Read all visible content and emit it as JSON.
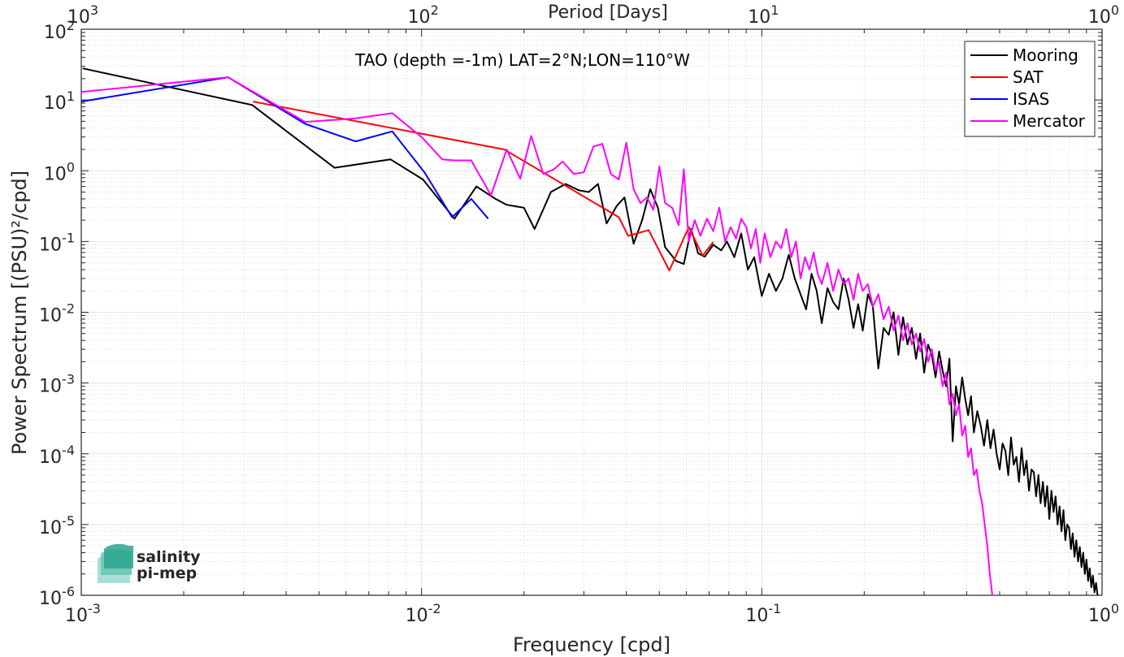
{
  "chart_data": {
    "type": "line",
    "title": "TAO (depth =-1m) LAT=2°N;LON=110°W",
    "xlabel": "Frequency [cpd]",
    "ylabel": "Power Spectrum [(PSU)²/cpd]",
    "x2label": "Period [Days]",
    "xscale": "log",
    "yscale": "log",
    "xlim": [
      0.001,
      1
    ],
    "ylim": [
      1e-06,
      100
    ],
    "x_ticks": [
      {
        "value": 0.001,
        "base": "10",
        "exp": "-3"
      },
      {
        "value": 0.01,
        "base": "10",
        "exp": "-2"
      },
      {
        "value": 0.1,
        "base": "10",
        "exp": "-1"
      },
      {
        "value": 1,
        "base": "10",
        "exp": "0"
      }
    ],
    "x2_ticks": [
      {
        "value": 0.001,
        "base": "10",
        "exp": "3"
      },
      {
        "value": 0.01,
        "base": "10",
        "exp": "2"
      },
      {
        "value": 0.1,
        "base": "10",
        "exp": "1"
      },
      {
        "value": 1,
        "base": "10",
        "exp": "0"
      }
    ],
    "y_ticks": [
      {
        "value": 1e-06,
        "base": "10",
        "exp": "-6"
      },
      {
        "value": 1e-05,
        "base": "10",
        "exp": "-5"
      },
      {
        "value": 0.0001,
        "base": "10",
        "exp": "-4"
      },
      {
        "value": 0.001,
        "base": "10",
        "exp": "-3"
      },
      {
        "value": 0.01,
        "base": "10",
        "exp": "-2"
      },
      {
        "value": 0.1,
        "base": "10",
        "exp": "-1"
      },
      {
        "value": 1,
        "base": "10",
        "exp": "0"
      },
      {
        "value": 10,
        "base": "10",
        "exp": "1"
      },
      {
        "value": 100,
        "base": "10",
        "exp": "2"
      }
    ],
    "grid": true,
    "legend_position": "top-right",
    "series": [
      {
        "name": "Mooring",
        "color": "#000000",
        "points": [
          [
            0.00101,
            28
          ],
          [
            0.00318,
            8.5
          ],
          [
            0.00555,
            1.1
          ],
          [
            0.0081,
            1.45
          ],
          [
            0.0101,
            0.75
          ],
          [
            0.0125,
            0.21
          ],
          [
            0.0145,
            0.6
          ],
          [
            0.0165,
            0.4
          ],
          [
            0.0178,
            0.33
          ],
          [
            0.02,
            0.3
          ],
          [
            0.0215,
            0.15
          ],
          [
            0.024,
            0.5
          ],
          [
            0.0265,
            0.65
          ],
          [
            0.029,
            0.53
          ],
          [
            0.031,
            0.5
          ],
          [
            0.033,
            0.65
          ],
          [
            0.035,
            0.18
          ],
          [
            0.0375,
            0.32
          ],
          [
            0.0395,
            0.42
          ],
          [
            0.042,
            0.093
          ],
          [
            0.0445,
            0.2
          ],
          [
            0.047,
            0.55
          ],
          [
            0.0495,
            0.3
          ],
          [
            0.052,
            0.083
          ],
          [
            0.056,
            0.053
          ],
          [
            0.059,
            0.048
          ],
          [
            0.062,
            0.15
          ],
          [
            0.065,
            0.068
          ],
          [
            0.068,
            0.061
          ],
          [
            0.072,
            0.09
          ],
          [
            0.076,
            0.075
          ],
          [
            0.079,
            0.1
          ],
          [
            0.083,
            0.06
          ],
          [
            0.087,
            0.13
          ],
          [
            0.091,
            0.04
          ],
          [
            0.095,
            0.06
          ],
          [
            0.1,
            0.017
          ],
          [
            0.105,
            0.035
          ],
          [
            0.11,
            0.02
          ],
          [
            0.115,
            0.03
          ],
          [
            0.12,
            0.065
          ],
          [
            0.125,
            0.03
          ],
          [
            0.13,
            0.018
          ],
          [
            0.135,
            0.011
          ],
          [
            0.14,
            0.035
          ],
          [
            0.145,
            0.02
          ],
          [
            0.15,
            0.007
          ],
          [
            0.156,
            0.022
          ],
          [
            0.162,
            0.014
          ],
          [
            0.168,
            0.011
          ],
          [
            0.174,
            0.03
          ],
          [
            0.18,
            0.015
          ],
          [
            0.186,
            0.006
          ],
          [
            0.192,
            0.013
          ],
          [
            0.198,
            0.0055
          ],
          [
            0.205,
            0.018
          ],
          [
            0.212,
            0.012
          ],
          [
            0.22,
            0.0016
          ],
          [
            0.228,
            0.006
          ],
          [
            0.236,
            0.0048
          ],
          [
            0.244,
            0.01
          ],
          [
            0.252,
            0.0025
          ],
          [
            0.26,
            0.0085
          ],
          [
            0.268,
            0.0035
          ],
          [
            0.276,
            0.006
          ],
          [
            0.284,
            0.0022
          ],
          [
            0.292,
            0.005
          ],
          [
            0.3,
            0.0014
          ],
          [
            0.308,
            0.0035
          ],
          [
            0.316,
            0.0025
          ],
          [
            0.324,
            0.0012
          ],
          [
            0.332,
            0.0028
          ],
          [
            0.34,
            0.0015
          ],
          [
            0.348,
            0.0009
          ],
          [
            0.356,
            0.0022
          ],
          [
            0.364,
            0.00015
          ],
          [
            0.372,
            0.0009
          ],
          [
            0.38,
            0.0005
          ],
          [
            0.388,
            0.0012
          ],
          [
            0.396,
            0.0006
          ],
          [
            0.404,
            0.00035
          ],
          [
            0.412,
            0.00065
          ],
          [
            0.42,
            0.0002
          ],
          [
            0.43,
            0.0004
          ],
          [
            0.44,
            0.00025
          ],
          [
            0.45,
            0.00013
          ],
          [
            0.46,
            0.0003
          ],
          [
            0.47,
            0.00012
          ],
          [
            0.48,
            0.00022
          ],
          [
            0.49,
            0.0001
          ],
          [
            0.5,
            6e-05
          ],
          [
            0.51,
            0.00014
          ],
          [
            0.52,
            0.00011
          ],
          [
            0.53,
            5e-05
          ],
          [
            0.54,
            0.00017
          ],
          [
            0.55,
            7e-05
          ],
          [
            0.56,
            9e-05
          ],
          [
            0.57,
            4e-05
          ],
          [
            0.58,
            0.00012
          ],
          [
            0.59,
            5e-05
          ],
          [
            0.6,
            8e-05
          ],
          [
            0.61,
            3e-05
          ],
          [
            0.62,
            6e-05
          ],
          [
            0.63,
            5.5e-05
          ],
          [
            0.64,
            2.5e-05
          ],
          [
            0.65,
            5e-05
          ],
          [
            0.66,
            2e-05
          ],
          [
            0.67,
            4e-05
          ],
          [
            0.68,
            1.8e-05
          ],
          [
            0.69,
            3.5e-05
          ],
          [
            0.7,
            1.2e-05
          ],
          [
            0.71,
            3e-05
          ],
          [
            0.72,
            1.5e-05
          ],
          [
            0.73,
            2.5e-05
          ],
          [
            0.74,
            1e-05
          ],
          [
            0.75,
            1.8e-05
          ],
          [
            0.76,
            8e-06
          ],
          [
            0.77,
            1.6e-05
          ],
          [
            0.78,
            6e-06
          ],
          [
            0.79,
            1e-05
          ],
          [
            0.8,
            9e-06
          ],
          [
            0.81,
            4.5e-06
          ],
          [
            0.82,
            7.5e-06
          ],
          [
            0.83,
            3.5e-06
          ],
          [
            0.84,
            6e-06
          ],
          [
            0.85,
            3e-06
          ],
          [
            0.86,
            4.8e-06
          ],
          [
            0.87,
            2.5e-06
          ],
          [
            0.88,
            4e-06
          ],
          [
            0.89,
            2e-06
          ],
          [
            0.9,
            3.2e-06
          ],
          [
            0.91,
            1.6e-06
          ],
          [
            0.92,
            2.4e-06
          ],
          [
            0.93,
            1.3e-06
          ],
          [
            0.94,
            1.9e-06
          ],
          [
            0.95,
            1.1e-06
          ],
          [
            0.96,
            1.5e-06
          ],
          [
            0.97,
            1e-06
          ]
        ]
      },
      {
        "name": "SAT",
        "color": "#ff0000",
        "points": [
          [
            0.0032,
            9.5
          ],
          [
            0.0175,
            2.0
          ],
          [
            0.038,
            0.22
          ],
          [
            0.0405,
            0.12
          ],
          [
            0.0465,
            0.145
          ],
          [
            0.0535,
            0.039
          ],
          [
            0.061,
            0.16
          ],
          [
            0.067,
            0.063
          ],
          [
            0.072,
            0.098
          ]
        ]
      },
      {
        "name": "ISAS",
        "color": "#0000ff",
        "points": [
          [
            0.001,
            9.5
          ],
          [
            0.0027,
            21
          ],
          [
            0.00455,
            4.6
          ],
          [
            0.0064,
            2.6
          ],
          [
            0.0082,
            3.6
          ],
          [
            0.0102,
            0.95
          ],
          [
            0.0123,
            0.22
          ],
          [
            0.014,
            0.4
          ],
          [
            0.0157,
            0.21
          ]
        ]
      },
      {
        "name": "Mercator",
        "color": "#ff00ff",
        "points": [
          [
            0.001,
            13
          ],
          [
            0.0027,
            21
          ],
          [
            0.00455,
            4.9
          ],
          [
            0.0064,
            5.5
          ],
          [
            0.0082,
            6.5
          ],
          [
            0.01,
            3
          ],
          [
            0.0115,
            1.45
          ],
          [
            0.0125,
            1.4
          ],
          [
            0.014,
            1.4
          ],
          [
            0.016,
            0.45
          ],
          [
            0.0178,
            2.0
          ],
          [
            0.0195,
            0.77
          ],
          [
            0.021,
            3.1
          ],
          [
            0.0228,
            0.9
          ],
          [
            0.0245,
            1.05
          ],
          [
            0.026,
            1.35
          ],
          [
            0.028,
            0.9
          ],
          [
            0.03,
            0.95
          ],
          [
            0.032,
            2.2
          ],
          [
            0.034,
            2.4
          ],
          [
            0.036,
            0.9
          ],
          [
            0.038,
            0.75
          ],
          [
            0.04,
            2.5
          ],
          [
            0.042,
            0.55
          ],
          [
            0.044,
            0.35
          ],
          [
            0.046,
            0.42
          ],
          [
            0.048,
            0.28
          ],
          [
            0.05,
            1.15
          ],
          [
            0.052,
            0.35
          ],
          [
            0.0545,
            0.3
          ],
          [
            0.057,
            0.17
          ],
          [
            0.059,
            1.05
          ],
          [
            0.061,
            0.1
          ],
          [
            0.0635,
            0.2
          ],
          [
            0.066,
            0.12
          ],
          [
            0.069,
            0.21
          ],
          [
            0.072,
            0.14
          ],
          [
            0.075,
            0.3
          ],
          [
            0.078,
            0.1
          ],
          [
            0.081,
            0.16
          ],
          [
            0.084,
            0.11
          ],
          [
            0.087,
            0.21
          ],
          [
            0.09,
            0.16
          ],
          [
            0.093,
            0.08
          ],
          [
            0.096,
            0.15
          ],
          [
            0.099,
            0.05
          ],
          [
            0.102,
            0.13
          ],
          [
            0.106,
            0.06
          ],
          [
            0.11,
            0.1
          ],
          [
            0.114,
            0.08
          ],
          [
            0.118,
            0.15
          ],
          [
            0.122,
            0.06
          ],
          [
            0.126,
            0.1
          ],
          [
            0.13,
            0.03
          ],
          [
            0.134,
            0.06
          ],
          [
            0.138,
            0.04
          ],
          [
            0.142,
            0.07
          ],
          [
            0.146,
            0.035
          ],
          [
            0.15,
            0.025
          ],
          [
            0.156,
            0.05
          ],
          [
            0.162,
            0.02
          ],
          [
            0.168,
            0.04
          ],
          [
            0.174,
            0.025
          ],
          [
            0.18,
            0.03
          ],
          [
            0.186,
            0.015
          ],
          [
            0.192,
            0.035
          ],
          [
            0.198,
            0.02
          ],
          [
            0.205,
            0.025
          ],
          [
            0.212,
            0.012
          ],
          [
            0.22,
            0.018
          ],
          [
            0.228,
            0.008
          ],
          [
            0.236,
            0.012
          ],
          [
            0.244,
            0.0055
          ],
          [
            0.252,
            0.009
          ],
          [
            0.26,
            0.004
          ],
          [
            0.268,
            0.007
          ],
          [
            0.276,
            0.0035
          ],
          [
            0.284,
            0.005
          ],
          [
            0.292,
            0.0028
          ],
          [
            0.3,
            0.0042
          ],
          [
            0.308,
            0.002
          ],
          [
            0.316,
            0.003
          ],
          [
            0.324,
            0.0015
          ],
          [
            0.332,
            0.002
          ],
          [
            0.34,
            0.0009
          ],
          [
            0.348,
            0.0014
          ],
          [
            0.356,
            0.0005
          ],
          [
            0.364,
            0.0007
          ],
          [
            0.372,
            0.00035
          ],
          [
            0.38,
            0.0005
          ],
          [
            0.388,
            0.00018
          ],
          [
            0.396,
            0.00025
          ],
          [
            0.404,
            9e-05
          ],
          [
            0.412,
            0.00012
          ],
          [
            0.42,
            5e-05
          ],
          [
            0.428,
            6e-05
          ],
          [
            0.436,
            3e-05
          ],
          [
            0.444,
            2e-05
          ],
          [
            0.452,
            1e-05
          ],
          [
            0.46,
            5e-06
          ],
          [
            0.468,
            2e-06
          ],
          [
            0.476,
            1e-06
          ]
        ]
      }
    ]
  },
  "logo": {
    "line1": "salinity",
    "line2": "pi-mep"
  }
}
